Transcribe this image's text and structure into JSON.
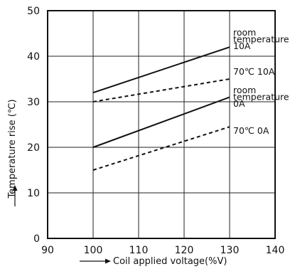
{
  "chart_data": {
    "type": "line",
    "xlabel": "Coil applied voltage(%V)",
    "ylabel": "Temperature rise (℃)",
    "xlim": [
      90,
      140
    ],
    "ylim": [
      0,
      50
    ],
    "x_ticks": [
      "90",
      "100",
      "110",
      "120",
      "130",
      "140"
    ],
    "y_ticks": [
      "0",
      "10",
      "20",
      "30",
      "40",
      "50"
    ],
    "grid": true,
    "series": [
      {
        "name": "room temperature 10A",
        "label_lines": [
          "room",
          "temperature",
          "10A"
        ],
        "style": "solid",
        "x": [
          100,
          130
        ],
        "y": [
          32,
          42
        ]
      },
      {
        "name": "70℃ 10A",
        "label_lines": [
          "70℃ 10A"
        ],
        "style": "dashed",
        "x": [
          100,
          130
        ],
        "y": [
          30,
          35
        ]
      },
      {
        "name": "room temperature 0A",
        "label_lines": [
          "room",
          "temperature",
          "0A"
        ],
        "style": "solid",
        "x": [
          100,
          130
        ],
        "y": [
          20,
          31
        ]
      },
      {
        "name": "70℃ 0A",
        "label_lines": [
          "70℃ 0A"
        ],
        "style": "dashed",
        "x": [
          100,
          130
        ],
        "y": [
          15,
          24.5
        ]
      }
    ]
  }
}
